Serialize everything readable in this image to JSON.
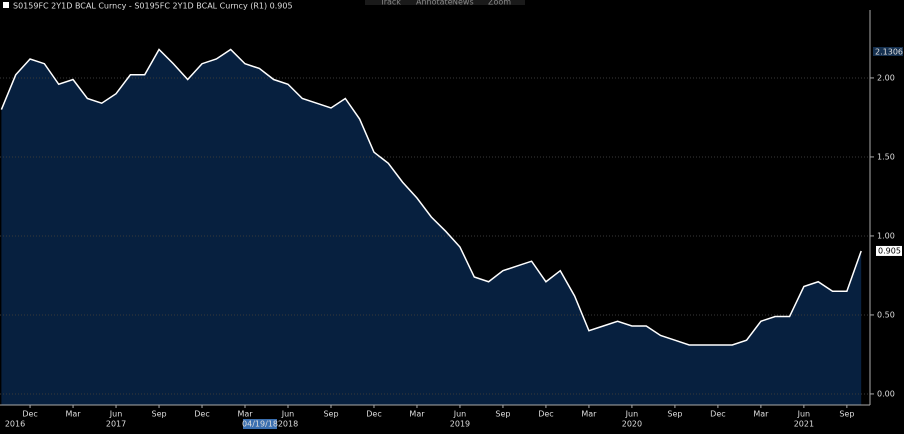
{
  "chart_data": {
    "type": "line",
    "title": "S0159FC 2Y1D BCAL Curncy - S0195FC 2Y1D BCAL Curncy (R1) 0.905",
    "menu": [
      "Track",
      "Annotate",
      "News",
      "Zoom"
    ],
    "cursor_date": "04/19/18",
    "high_label": "2.1306",
    "last_label": "0.905",
    "x": [
      "2016-10",
      "2016-11",
      "2016-12",
      "2017-01",
      "2017-02",
      "2017-03",
      "2017-04",
      "2017-05",
      "2017-06",
      "2017-07",
      "2017-08",
      "2017-09",
      "2017-10",
      "2017-11",
      "2017-12",
      "2018-01",
      "2018-02",
      "2018-03",
      "2018-04",
      "2018-05",
      "2018-06",
      "2018-07",
      "2018-08",
      "2018-09",
      "2018-10",
      "2018-11",
      "2018-12",
      "2019-01",
      "2019-02",
      "2019-03",
      "2019-04",
      "2019-05",
      "2019-06",
      "2019-07",
      "2019-08",
      "2019-09",
      "2019-10",
      "2019-11",
      "2019-12",
      "2020-01",
      "2020-02",
      "2020-03",
      "2020-04",
      "2020-05",
      "2020-06",
      "2020-07",
      "2020-08",
      "2020-09",
      "2020-10",
      "2020-11",
      "2020-12",
      "2021-01",
      "2021-02",
      "2021-03",
      "2021-04",
      "2021-05",
      "2021-06",
      "2021-07",
      "2021-08",
      "2021-09",
      "2021-10"
    ],
    "series": [
      {
        "name": "S0159FC 2Y1D BCAL Curncy - S0195FC 2Y1D BCAL Curncy",
        "color": "#ffffff",
        "fill": "#07203f",
        "values": [
          1.8,
          2.02,
          2.12,
          2.09,
          1.96,
          1.99,
          1.87,
          1.84,
          1.9,
          2.02,
          2.02,
          2.18,
          2.09,
          1.99,
          2.09,
          2.12,
          2.18,
          2.09,
          2.06,
          1.99,
          1.96,
          1.87,
          1.84,
          1.81,
          1.87,
          1.74,
          1.53,
          1.46,
          1.34,
          1.24,
          1.12,
          1.03,
          0.93,
          0.74,
          0.71,
          0.78,
          0.81,
          0.84,
          0.71,
          0.78,
          0.62,
          0.4,
          0.43,
          0.46,
          0.43,
          0.43,
          0.37,
          0.34,
          0.31,
          0.31,
          0.31,
          0.31,
          0.34,
          0.46,
          0.49,
          0.49,
          0.68,
          0.71,
          0.65,
          0.65,
          0.905
        ]
      }
    ],
    "ylim": [
      -0.07,
      2.43
    ],
    "yticks": [
      {
        "value": 0,
        "label": "0.00"
      },
      {
        "value": 0.5,
        "label": "0.50"
      },
      {
        "value": 1,
        "label": "1.00"
      },
      {
        "value": 1.5,
        "label": "1.50"
      },
      {
        "value": 2,
        "label": "2.00"
      }
    ],
    "xticks": [
      {
        "value": "2016-12",
        "label": "Dec"
      },
      {
        "value": "2017-03",
        "label": "Mar"
      },
      {
        "value": "2017-06",
        "label": "Jun"
      },
      {
        "value": "2017-09",
        "label": "Sep"
      },
      {
        "value": "2017-12",
        "label": "Dec"
      },
      {
        "value": "2018-03",
        "label": "Mar"
      },
      {
        "value": "2018-06",
        "label": "Jun"
      },
      {
        "value": "2018-09",
        "label": "Sep"
      },
      {
        "value": "2018-12",
        "label": "Dec"
      },
      {
        "value": "2019-03",
        "label": "Mar"
      },
      {
        "value": "2019-06",
        "label": "Jun"
      },
      {
        "value": "2019-09",
        "label": "Sep"
      },
      {
        "value": "2019-12",
        "label": "Dec"
      },
      {
        "value": "2020-03",
        "label": "Mar"
      },
      {
        "value": "2020-06",
        "label": "Jun"
      },
      {
        "value": "2020-09",
        "label": "Sep"
      },
      {
        "value": "2020-12",
        "label": "Dec"
      },
      {
        "value": "2021-03",
        "label": "Mar"
      },
      {
        "value": "2021-06",
        "label": "Jun"
      },
      {
        "value": "2021-09",
        "label": "Sep"
      }
    ],
    "years": [
      "2016",
      "2017",
      "2018",
      "2019",
      "2020",
      "2021"
    ],
    "grid": true
  }
}
